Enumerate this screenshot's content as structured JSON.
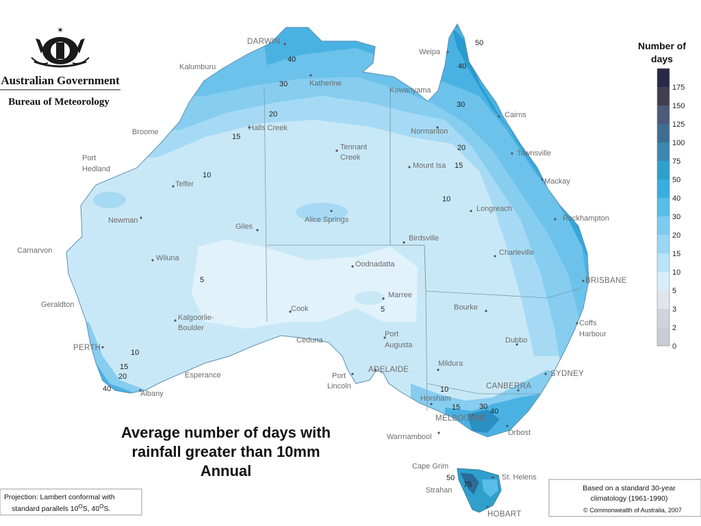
{
  "header": {
    "gov_name": "Australian Government",
    "bureau_name": "Bureau of Meteorology"
  },
  "title": {
    "line1": "Average number of days with",
    "line2": "rainfall greater than 10mm",
    "line3": "Annual"
  },
  "legend": {
    "title_line1": "Number of",
    "title_line2": "days",
    "ticks": [
      "175",
      "150",
      "125",
      "100",
      "75",
      "50",
      "40",
      "30",
      "20",
      "15",
      "10",
      "5",
      "3",
      "2",
      "0"
    ],
    "colors": [
      "#2b2747",
      "#413f4e",
      "#4a5a78",
      "#3f6e92",
      "#3b87ae",
      "#2fa0cc",
      "#38aee0",
      "#58bde8",
      "#7cccf0",
      "#9ad7f4",
      "#b9e3f7",
      "#d7eef9",
      "#dfe5ea",
      "#ced4dc",
      "#c7cdd4"
    ]
  },
  "cities": {
    "darwin": "DARWIN",
    "kalumburu": "Kalumburu",
    "katherine": "Katherine",
    "weipa": "Weipa",
    "kowanyama": "Kowanyama",
    "cairns": "Cairns",
    "normanton": "Normanton",
    "broome": "Broome",
    "halls_creek": "Halls Creek",
    "tennant_creek_1": "Tennant",
    "tennant_creek_2": "Creek",
    "townsville": "Townsville",
    "mount_isa": "Mount Isa",
    "mackay": "Mackay",
    "port_hedland_1": "Port",
    "port_hedland_2": "Hedland",
    "telfer": "Telfer",
    "longreach": "Longreach",
    "rockhampton": "Rockhampton",
    "newman": "Newman",
    "alice_springs": "Alice Springs",
    "giles": "Giles",
    "birdsville": "Birdsville",
    "carnarvon": "Carnarvon",
    "wiluna": "Wiluna",
    "oodnadatta": "Oodnadatta",
    "charleville": "Charleville",
    "brisbane": "BRISBANE",
    "geraldton": "Geraldton",
    "marree": "Marree",
    "kalgoorlie_1": "Kalgoorlie-",
    "kalgoorlie_2": "Boulder",
    "cook": "Cook",
    "bourke": "Bourke",
    "coffs_1": "Coffs",
    "coffs_2": "Harbour",
    "ceduna": "Ceduna",
    "port_augusta_1": "Port",
    "port_augusta_2": "Augusta",
    "dubbo": "Dubbo",
    "perth": "PERTH",
    "mildura": "Mildura",
    "adelaide": "ADELAIDE",
    "port_lincoln_1": "Port",
    "port_lincoln_2": "Lincoln",
    "esperance": "Esperance",
    "sydney": "SYDNEY",
    "canberra": "CANBERRA",
    "albany": "Albany",
    "horsham": "Horsham",
    "melbourne": "MELBOURNE",
    "orbost": "Orbost",
    "warrnambool": "Warrnambool",
    "cape_grim": "Cape Grim",
    "st_helens": "St. Helens",
    "strahan": "Strahan",
    "hobart": "HOBART"
  },
  "isolines": {
    "v50_nth": "50",
    "v40_nth": "40",
    "v30_nth": "30",
    "v40_dar": "40",
    "v30_dar": "30",
    "v20_nt": "20",
    "v15_nt": "15",
    "v10_nt": "10",
    "v20_qld": "20",
    "v15_qld": "15",
    "v10_qld": "10",
    "v5_wa": "5",
    "v5_sa": "5",
    "v10_per": "10",
    "v15_per": "15",
    "v20_per": "20",
    "v40_per": "40",
    "v10_vic": "10",
    "v15_vic": "15",
    "v30_vic": "30",
    "v40_vic": "40",
    "v50_tas": "50",
    "v75_tas": "75"
  },
  "notes": {
    "projection_line1": "Projection: Lambert conformal with",
    "projection_line2": "standard parallels 10",
    "projection_deg1": "O",
    "projection_mid": "S, 40",
    "projection_deg2": "O",
    "projection_end": "S.",
    "climatology_line1": "Based on a standard 30-year",
    "climatology_line2": "climatology (1961-1990)",
    "copyright": "© Commonwealth of Australia, 2007"
  }
}
